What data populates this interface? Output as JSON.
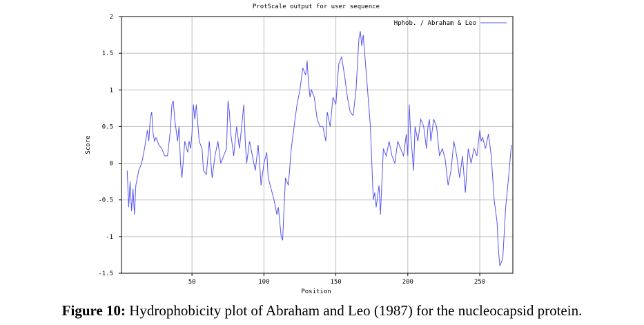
{
  "caption": {
    "label": "Figure 10:",
    "text": "Hydrophobicity plot of Abraham and Leo (1987) for the nucleocapsid protein."
  },
  "chart_data": {
    "type": "line",
    "title": "ProtScale output for user sequence",
    "xlabel": "Position",
    "ylabel": "Score",
    "xlim": [
      1,
      273
    ],
    "ylim": [
      -1.5,
      2
    ],
    "xticks": [
      50,
      100,
      150,
      200,
      250
    ],
    "yticks": [
      -1.5,
      -1,
      -0.5,
      0,
      0.5,
      1,
      1.5,
      2
    ],
    "ytick_labels": [
      "-1.5",
      "-1",
      "-0.5",
      "0",
      "0.5",
      "1",
      "1.5",
      "2"
    ],
    "grid": true,
    "legend_position": "top-right",
    "series_color": "#5555ee",
    "series": [
      {
        "name": "Hphob. / Abraham & Leo",
        "x": [
          5,
          6,
          7,
          8,
          9,
          10,
          11,
          13,
          15,
          17,
          19,
          20,
          21,
          22,
          23,
          24,
          25,
          27,
          29,
          31,
          33,
          35,
          36,
          37,
          38,
          40,
          41,
          42,
          43,
          45,
          47,
          48,
          49,
          50,
          51,
          52,
          53,
          55,
          57,
          58,
          60,
          62,
          64,
          66,
          68,
          70,
          72,
          74,
          75,
          76,
          77,
          79,
          81,
          83,
          85,
          86,
          87,
          88,
          90,
          92,
          94,
          96,
          97,
          98,
          100,
          102,
          103,
          105,
          107,
          109,
          110,
          112,
          113,
          114,
          115,
          117,
          119,
          121,
          123,
          125,
          127,
          129,
          130,
          131,
          132,
          133,
          135,
          137,
          139,
          141,
          143,
          144,
          146,
          148,
          150,
          151,
          152,
          154,
          156,
          158,
          160,
          162,
          164,
          166,
          167,
          168,
          169,
          170,
          172,
          174,
          176,
          177,
          178,
          179,
          180,
          181,
          183,
          185,
          187,
          189,
          191,
          193,
          195,
          197,
          199,
          200,
          201,
          202,
          204,
          205,
          207,
          209,
          211,
          213,
          214,
          215,
          216,
          218,
          220,
          222,
          224,
          226,
          228,
          230,
          232,
          234,
          236,
          238,
          240,
          242,
          244,
          246,
          248,
          250,
          251,
          252,
          254,
          256,
          258,
          260,
          262,
          263,
          264,
          265,
          266,
          268,
          270,
          272
        ],
        "y": [
          -0.1,
          -0.6,
          -0.25,
          -0.65,
          -0.35,
          -0.7,
          -0.3,
          -0.1,
          0,
          0.2,
          0.45,
          0.3,
          0.6,
          0.7,
          0.4,
          0.3,
          0.35,
          0.25,
          0.2,
          0.1,
          0.1,
          0.45,
          0.8,
          0.85,
          0.6,
          0.3,
          0.5,
          0,
          -0.2,
          0.3,
          0.15,
          0.3,
          0.2,
          0.4,
          0.8,
          0.6,
          0.8,
          0.3,
          0.2,
          -0.1,
          -0.15,
          0.3,
          -0.2,
          0.1,
          0.3,
          0,
          0.1,
          0.2,
          0.85,
          0.7,
          0.4,
          0.1,
          0.5,
          0.2,
          0.6,
          0.8,
          0.3,
          0,
          0.3,
          0.1,
          -0.1,
          0.25,
          0,
          -0.3,
          0,
          0.15,
          -0.2,
          -0.35,
          -0.5,
          -0.7,
          -0.6,
          -1,
          -1.05,
          -0.6,
          -0.2,
          -0.3,
          0.2,
          0.5,
          0.8,
          1.0,
          1.3,
          1.2,
          1.4,
          1.1,
          0.9,
          1.0,
          0.9,
          0.6,
          0.5,
          0.5,
          0.3,
          0.7,
          0.5,
          0.9,
          0.8,
          1.1,
          1.35,
          1.45,
          1.2,
          0.9,
          0.7,
          0.65,
          1.0,
          1.7,
          1.8,
          1.6,
          1.75,
          1.5,
          1.0,
          0.5,
          -0.5,
          -0.4,
          -0.6,
          -0.45,
          -0.3,
          -0.7,
          0.2,
          0.1,
          0.3,
          0.1,
          0,
          0.3,
          0.2,
          0.1,
          0.4,
          0.1,
          0.8,
          0.4,
          -0.1,
          0.5,
          0.3,
          0.6,
          0.5,
          0.2,
          0.5,
          0.6,
          0.3,
          0.6,
          0.5,
          0.1,
          0.2,
          0.05,
          -0.3,
          -0.1,
          0.3,
          0.1,
          -0.2,
          0.1,
          -0.4,
          0.2,
          0,
          0.2,
          0.1,
          0.45,
          0.3,
          0.35,
          0.2,
          0.4,
          0.1,
          -0.5,
          -0.8,
          -1.2,
          -1.4,
          -1.35,
          -1.3,
          -0.6,
          -0.2,
          0.25
        ]
      }
    ]
  }
}
